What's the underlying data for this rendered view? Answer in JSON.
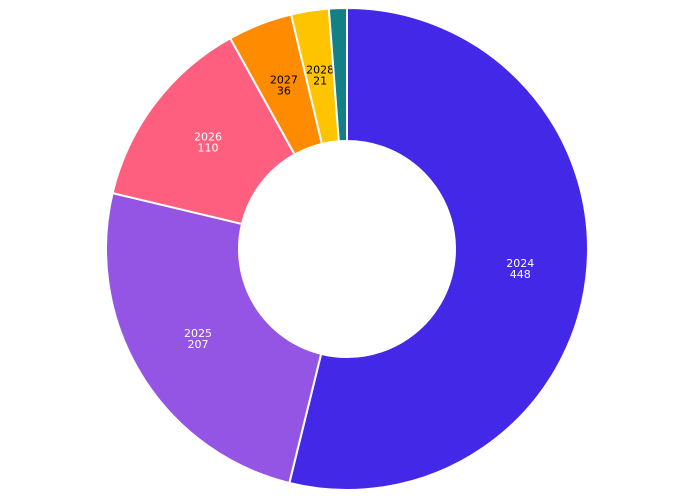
{
  "chart_data": {
    "type": "donut",
    "categories": [
      "2024",
      "2025",
      "2026",
      "2027",
      "2028",
      null
    ],
    "values": [
      448,
      207,
      110,
      36,
      21,
      10
    ],
    "colors": [
      "#4328e7",
      "#9455e4",
      "#ff5f7e",
      "#ff8c00",
      "#ffc400",
      "#138086"
    ]
  }
}
